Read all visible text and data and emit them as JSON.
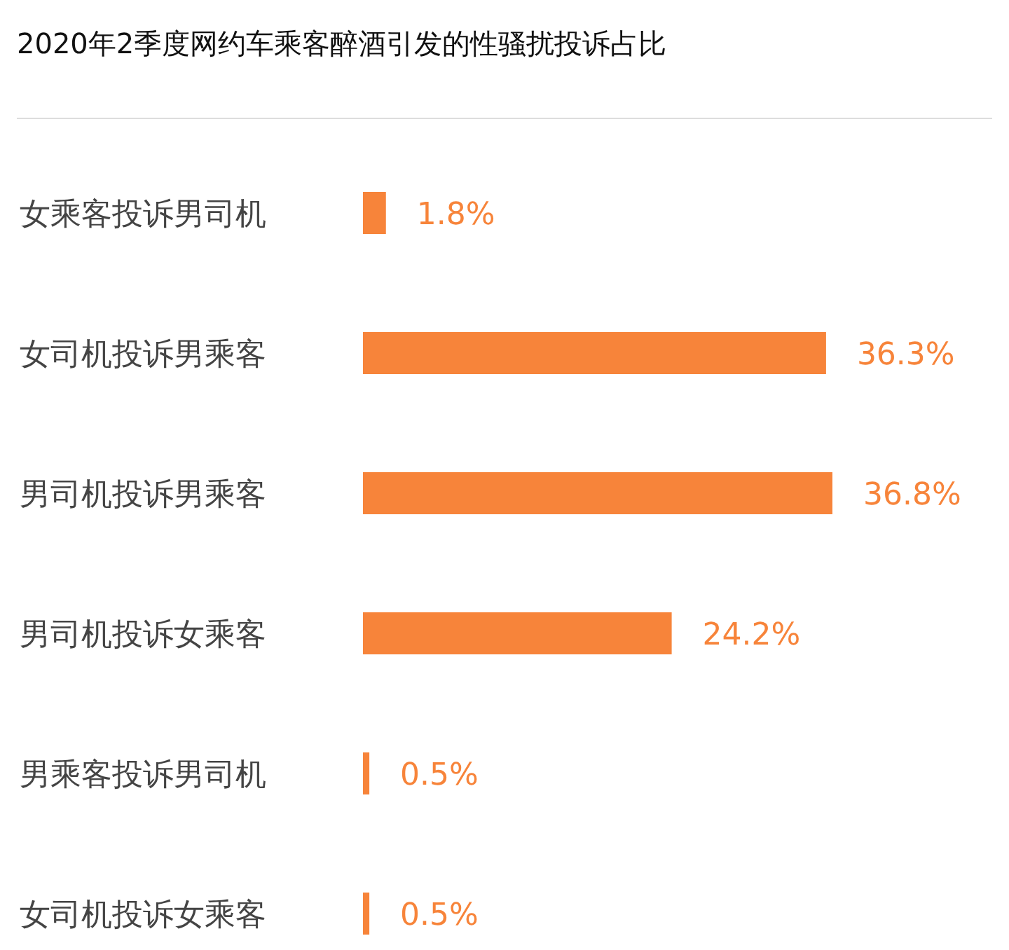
{
  "chart_data": {
    "type": "bar",
    "orientation": "horizontal",
    "title": "2020年2季度网约车乘客醉酒引发的性骚扰投诉占比",
    "categories": [
      "女乘客投诉男司机",
      "女司机投诉男乘客",
      "男司机投诉男乘客",
      "男司机投诉女乘客",
      "男乘客投诉男司机",
      "女司机投诉女乘客"
    ],
    "values": [
      1.8,
      36.3,
      36.8,
      24.2,
      0.5,
      0.5
    ],
    "value_labels": [
      "1.8%",
      "36.3%",
      "36.8%",
      "24.2%",
      "0.5%",
      "0.5%"
    ],
    "color": "#f7843a",
    "data_labels": true
  }
}
